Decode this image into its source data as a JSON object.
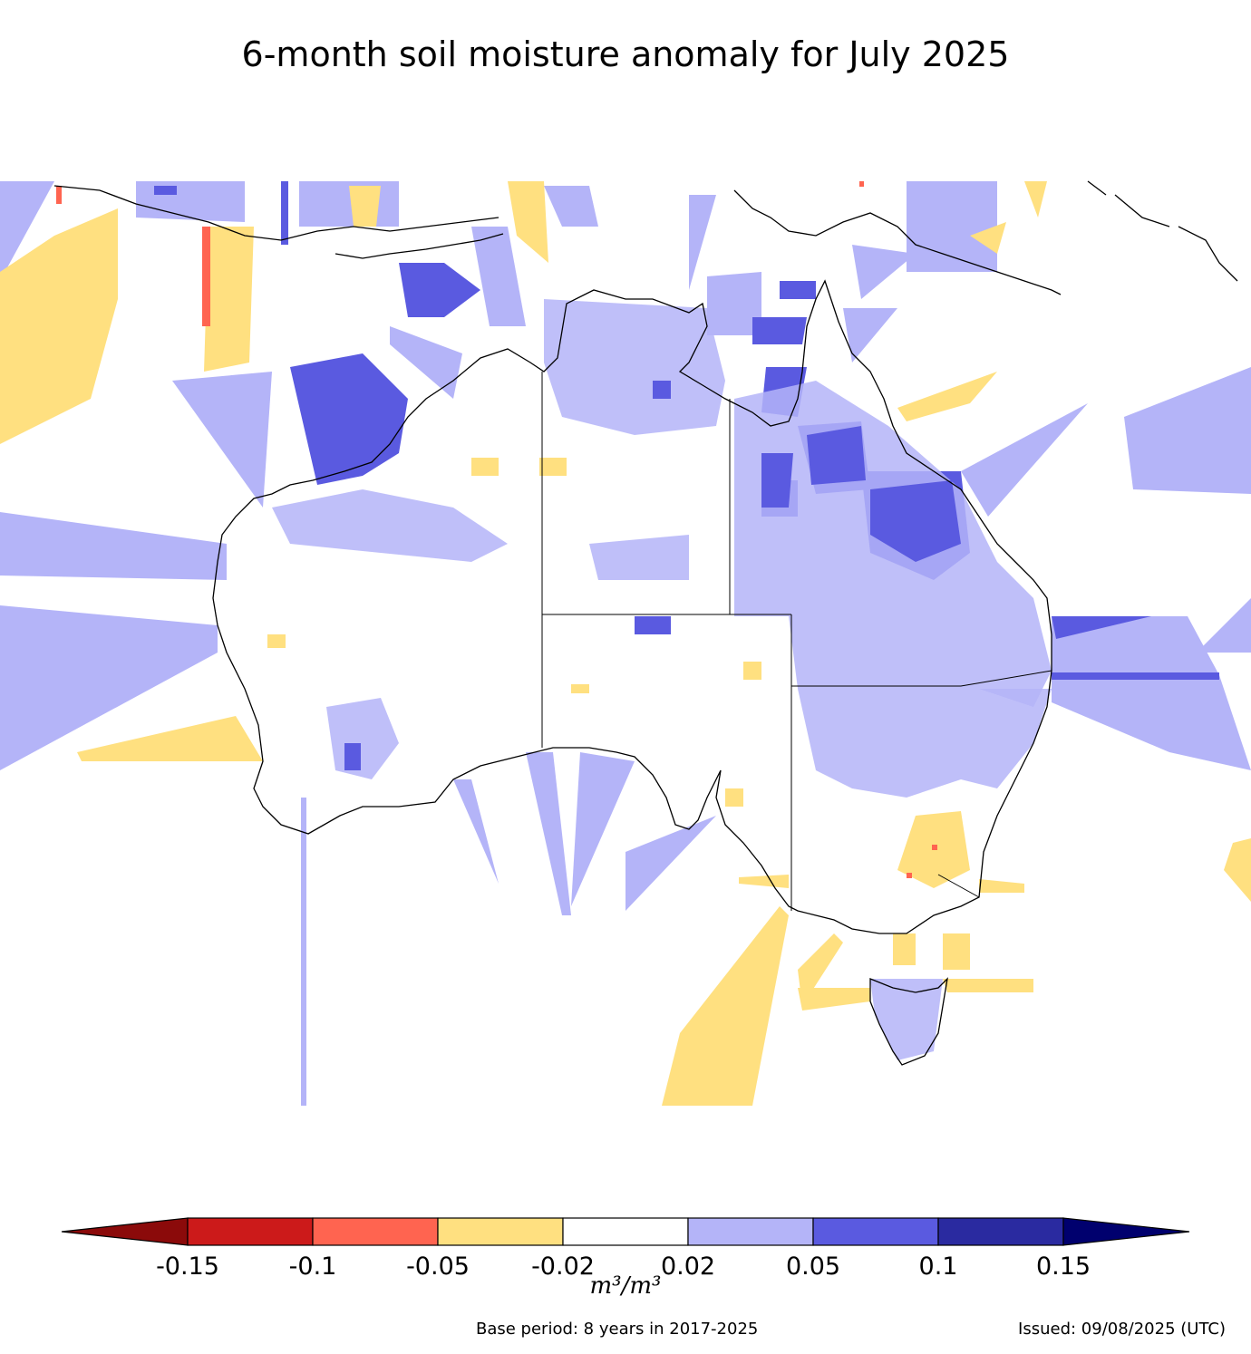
{
  "title": "6-month soil moisture anomaly for July 2025",
  "colorbar": {
    "bins": [
      {
        "from": null,
        "to": -0.15,
        "color": "#8b0a0a"
      },
      {
        "from": -0.15,
        "to": -0.1,
        "color": "#cc1a1a"
      },
      {
        "from": -0.1,
        "to": -0.05,
        "color": "#ff6450"
      },
      {
        "from": -0.05,
        "to": -0.02,
        "color": "#ffe080"
      },
      {
        "from": -0.02,
        "to": 0.02,
        "color": "#ffffff"
      },
      {
        "from": 0.02,
        "to": 0.05,
        "color": "#b4b4f8"
      },
      {
        "from": 0.05,
        "to": 0.1,
        "color": "#5a5ae0"
      },
      {
        "from": 0.1,
        "to": 0.15,
        "color": "#2a2aa0"
      },
      {
        "from": 0.15,
        "to": null,
        "color": "#00006e"
      }
    ],
    "tick_labels": [
      "-0.15",
      "-0.1",
      "-0.05",
      "-0.02",
      "0.02",
      "0.05",
      "0.1",
      "0.15"
    ]
  },
  "units": "m³/m³",
  "footer": {
    "base_period": "Base period: 8 years in 2017-2025",
    "issued": "Issued: 09/08/2025 (UTC)"
  }
}
